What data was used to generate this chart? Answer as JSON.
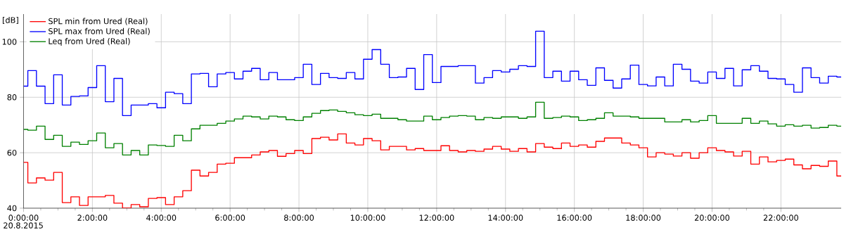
{
  "chart_data": {
    "type": "step",
    "ylabel": "[dB]",
    "annotations": [
      "20.8.2015"
    ],
    "x": [
      0,
      0.25,
      0.5,
      0.75,
      1,
      1.25,
      1.5,
      1.75,
      2,
      2.25,
      2.5,
      2.75,
      3,
      3.25,
      3.5,
      3.75,
      4,
      4.25,
      4.5,
      4.75,
      5,
      5.25,
      5.5,
      5.75,
      6,
      6.25,
      6.5,
      6.75,
      7,
      7.25,
      7.5,
      7.75,
      8,
      8.25,
      8.5,
      8.75,
      9,
      9.25,
      9.5,
      9.75,
      10,
      10.25,
      10.5,
      10.75,
      11,
      11.25,
      11.5,
      11.75,
      12,
      12.25,
      12.5,
      12.75,
      13,
      13.25,
      13.5,
      13.75,
      14,
      14.25,
      14.5,
      14.75,
      15,
      15.25,
      15.5,
      15.75,
      16,
      16.25,
      16.5,
      16.75,
      17,
      17.25,
      17.5,
      17.75,
      18,
      18.25,
      18.5,
      18.75,
      19,
      19.25,
      19.5,
      19.75,
      20,
      20.25,
      20.5,
      20.75,
      21,
      21.25,
      21.5,
      21.75,
      22,
      22.25,
      22.5,
      22.75,
      23,
      23.25,
      23.5,
      23.75
    ],
    "series": [
      {
        "name": "SPL min from Ured (Real)",
        "color": "#ff0000",
        "values": [
          56.5,
          49.1,
          50.9,
          50.1,
          52.9,
          42.0,
          44.1,
          41.0,
          44.1,
          44.1,
          44.6,
          41.8,
          40.0,
          41.3,
          40.5,
          43.5,
          43.8,
          41.3,
          44.1,
          46.3,
          53.7,
          51.6,
          52.9,
          55.9,
          56.2,
          58.2,
          58.2,
          59.2,
          60.3,
          60.8,
          58.7,
          59.7,
          60.8,
          59.7,
          65.1,
          65.6,
          64.6,
          66.8,
          63.5,
          62.8,
          65.1,
          64.3,
          61.0,
          62.3,
          62.3,
          61.0,
          61.5,
          60.8,
          60.8,
          62.5,
          60.8,
          60.3,
          60.8,
          60.5,
          61.3,
          62.3,
          61.3,
          60.5,
          61.5,
          60.3,
          63.3,
          62.0,
          61.5,
          63.5,
          62.3,
          62.8,
          62.0,
          64.1,
          65.3,
          65.3,
          63.5,
          62.8,
          61.8,
          58.5,
          60.0,
          59.5,
          58.8,
          60.0,
          58.0,
          60.0,
          61.8,
          60.8,
          60.3,
          58.8,
          60.5,
          55.9,
          58.5,
          56.7,
          57.2,
          57.7,
          55.6,
          54.2,
          55.4,
          55.1,
          57.0,
          51.6
        ]
      },
      {
        "name": "SPL max from Ured (Real)",
        "color": "#0000ff",
        "values": [
          84.0,
          89.6,
          84.0,
          77.7,
          88.1,
          77.2,
          80.3,
          80.5,
          83.5,
          91.4,
          78.4,
          86.8,
          73.4,
          77.2,
          77.2,
          77.7,
          76.2,
          81.8,
          81.3,
          77.7,
          88.4,
          88.6,
          83.8,
          88.4,
          88.9,
          86.6,
          89.4,
          90.4,
          86.3,
          88.9,
          86.3,
          86.3,
          87.1,
          91.9,
          84.6,
          88.6,
          87.1,
          86.8,
          88.9,
          86.6,
          93.7,
          97.2,
          91.9,
          87.1,
          87.3,
          90.4,
          82.8,
          95.4,
          85.3,
          91.1,
          91.1,
          91.4,
          91.4,
          85.1,
          87.1,
          89.6,
          89.1,
          90.1,
          91.4,
          91.1,
          103.8,
          87.1,
          89.4,
          85.8,
          89.4,
          86.3,
          84.3,
          90.6,
          86.1,
          83.3,
          86.6,
          91.6,
          84.6,
          84.1,
          87.3,
          84.1,
          91.9,
          90.1,
          85.8,
          85.1,
          89.1,
          86.8,
          90.4,
          84.1,
          89.9,
          91.4,
          89.4,
          86.8,
          86.6,
          84.6,
          81.8,
          90.6,
          87.1,
          85.1,
          87.6,
          87.3
        ]
      },
      {
        "name": "Leq from Ured (Real)",
        "color": "#008000",
        "values": [
          68.4,
          68.1,
          69.6,
          64.8,
          66.3,
          62.3,
          63.8,
          63.0,
          64.3,
          67.1,
          61.8,
          63.3,
          59.2,
          60.8,
          59.2,
          62.8,
          62.6,
          62.3,
          66.3,
          64.3,
          68.6,
          69.9,
          69.9,
          70.6,
          71.4,
          72.2,
          73.2,
          72.9,
          72.2,
          73.2,
          72.9,
          71.9,
          71.6,
          72.9,
          74.2,
          75.2,
          75.4,
          74.9,
          74.4,
          73.7,
          73.4,
          73.9,
          72.4,
          72.4,
          71.9,
          71.4,
          71.4,
          73.2,
          71.9,
          72.7,
          73.2,
          73.4,
          73.2,
          71.9,
          72.7,
          72.4,
          72.9,
          72.9,
          72.4,
          72.9,
          78.2,
          72.4,
          72.7,
          73.2,
          72.9,
          71.6,
          71.9,
          72.4,
          74.4,
          73.2,
          73.2,
          72.9,
          72.4,
          72.4,
          72.4,
          71.1,
          71.1,
          71.9,
          71.1,
          71.6,
          73.4,
          70.6,
          70.6,
          70.6,
          72.4,
          70.6,
          71.4,
          70.4,
          69.6,
          70.1,
          69.6,
          69.9,
          68.9,
          69.1,
          69.9,
          69.6
        ]
      }
    ],
    "xlim": [
      0,
      23.75
    ],
    "ylim": [
      40,
      110
    ],
    "xticks": [
      {
        "value": 0,
        "label": "0:00:00"
      },
      {
        "value": 2,
        "label": "2:00:00"
      },
      {
        "value": 4,
        "label": "4:00:00"
      },
      {
        "value": 6,
        "label": "6:00:00"
      },
      {
        "value": 8,
        "label": "8:00:00"
      },
      {
        "value": 10,
        "label": "10:00:00"
      },
      {
        "value": 12,
        "label": "12:00:00"
      },
      {
        "value": 14,
        "label": "14:00:00"
      },
      {
        "value": 16,
        "label": "16:00:00"
      },
      {
        "value": 18,
        "label": "18:00:00"
      },
      {
        "value": 20,
        "label": "20:00:00"
      },
      {
        "value": 22,
        "label": "22:00:00"
      }
    ],
    "yticks": [
      40,
      60,
      80,
      100
    ],
    "grid": true,
    "legend": "top left"
  }
}
